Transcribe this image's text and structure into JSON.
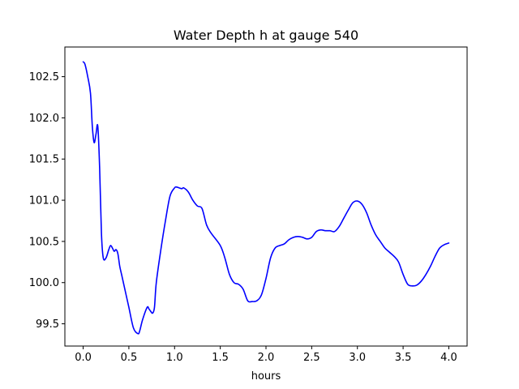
{
  "chart_data": {
    "type": "line",
    "title": "Water Depth h at gauge 540",
    "xlabel": "hours",
    "ylabel": "",
    "xlim": [
      -0.2,
      4.2
    ],
    "ylim": [
      99.23,
      102.86
    ],
    "xticks": [
      0.0,
      0.5,
      1.0,
      1.5,
      2.0,
      2.5,
      3.0,
      3.5,
      4.0
    ],
    "xtick_labels": [
      "0.0",
      "0.5",
      "1.0",
      "1.5",
      "2.0",
      "2.5",
      "3.0",
      "3.5",
      "4.0"
    ],
    "yticks": [
      99.5,
      100.0,
      100.5,
      101.0,
      101.5,
      102.0,
      102.5
    ],
    "ytick_labels": [
      "99.5",
      "100.0",
      "100.5",
      "101.0",
      "101.5",
      "102.0",
      "102.5"
    ],
    "grid": false,
    "series": [
      {
        "color": "#0000ff",
        "x": [
          0.0,
          0.02,
          0.05,
          0.08,
          0.1,
          0.12,
          0.14,
          0.16,
          0.18,
          0.2,
          0.22,
          0.25,
          0.28,
          0.3,
          0.32,
          0.34,
          0.36,
          0.38,
          0.4,
          0.42,
          0.45,
          0.5,
          0.55,
          0.6,
          0.62,
          0.65,
          0.7,
          0.72,
          0.74,
          0.76,
          0.78,
          0.8,
          0.85,
          0.9,
          0.95,
          1.0,
          1.02,
          1.05,
          1.08,
          1.1,
          1.15,
          1.2,
          1.25,
          1.3,
          1.35,
          1.4,
          1.5,
          1.55,
          1.6,
          1.65,
          1.7,
          1.75,
          1.8,
          1.85,
          1.9,
          1.95,
          2.0,
          2.05,
          2.1,
          2.15,
          2.2,
          2.25,
          2.3,
          2.35,
          2.4,
          2.45,
          2.5,
          2.55,
          2.6,
          2.65,
          2.7,
          2.75,
          2.8,
          2.85,
          2.9,
          2.95,
          3.0,
          3.05,
          3.1,
          3.15,
          3.2,
          3.25,
          3.3,
          3.35,
          3.4,
          3.45,
          3.5,
          3.55,
          3.6,
          3.65,
          3.7,
          3.75,
          3.8,
          3.85,
          3.9,
          3.95,
          4.0
        ],
        "y": [
          102.68,
          102.65,
          102.5,
          102.3,
          101.9,
          101.7,
          101.8,
          101.9,
          101.4,
          100.6,
          100.3,
          100.3,
          100.4,
          100.45,
          100.42,
          100.38,
          100.4,
          100.35,
          100.2,
          100.1,
          99.95,
          99.7,
          99.45,
          99.38,
          99.42,
          99.55,
          99.7,
          99.68,
          99.65,
          99.63,
          99.7,
          100.0,
          100.4,
          100.75,
          101.05,
          101.15,
          101.16,
          101.15,
          101.14,
          101.15,
          101.1,
          101.0,
          100.93,
          100.9,
          100.7,
          100.6,
          100.45,
          100.3,
          100.1,
          100.0,
          99.98,
          99.92,
          99.78,
          99.77,
          99.78,
          99.85,
          100.05,
          100.3,
          100.42,
          100.45,
          100.47,
          100.52,
          100.55,
          100.56,
          100.55,
          100.53,
          100.55,
          100.62,
          100.64,
          100.63,
          100.63,
          100.62,
          100.68,
          100.78,
          100.88,
          100.97,
          100.99,
          100.95,
          100.85,
          100.7,
          100.58,
          100.5,
          100.42,
          100.37,
          100.32,
          100.25,
          100.1,
          99.98,
          99.96,
          99.97,
          100.02,
          100.1,
          100.2,
          100.32,
          100.42,
          100.46,
          100.48
        ]
      }
    ]
  }
}
